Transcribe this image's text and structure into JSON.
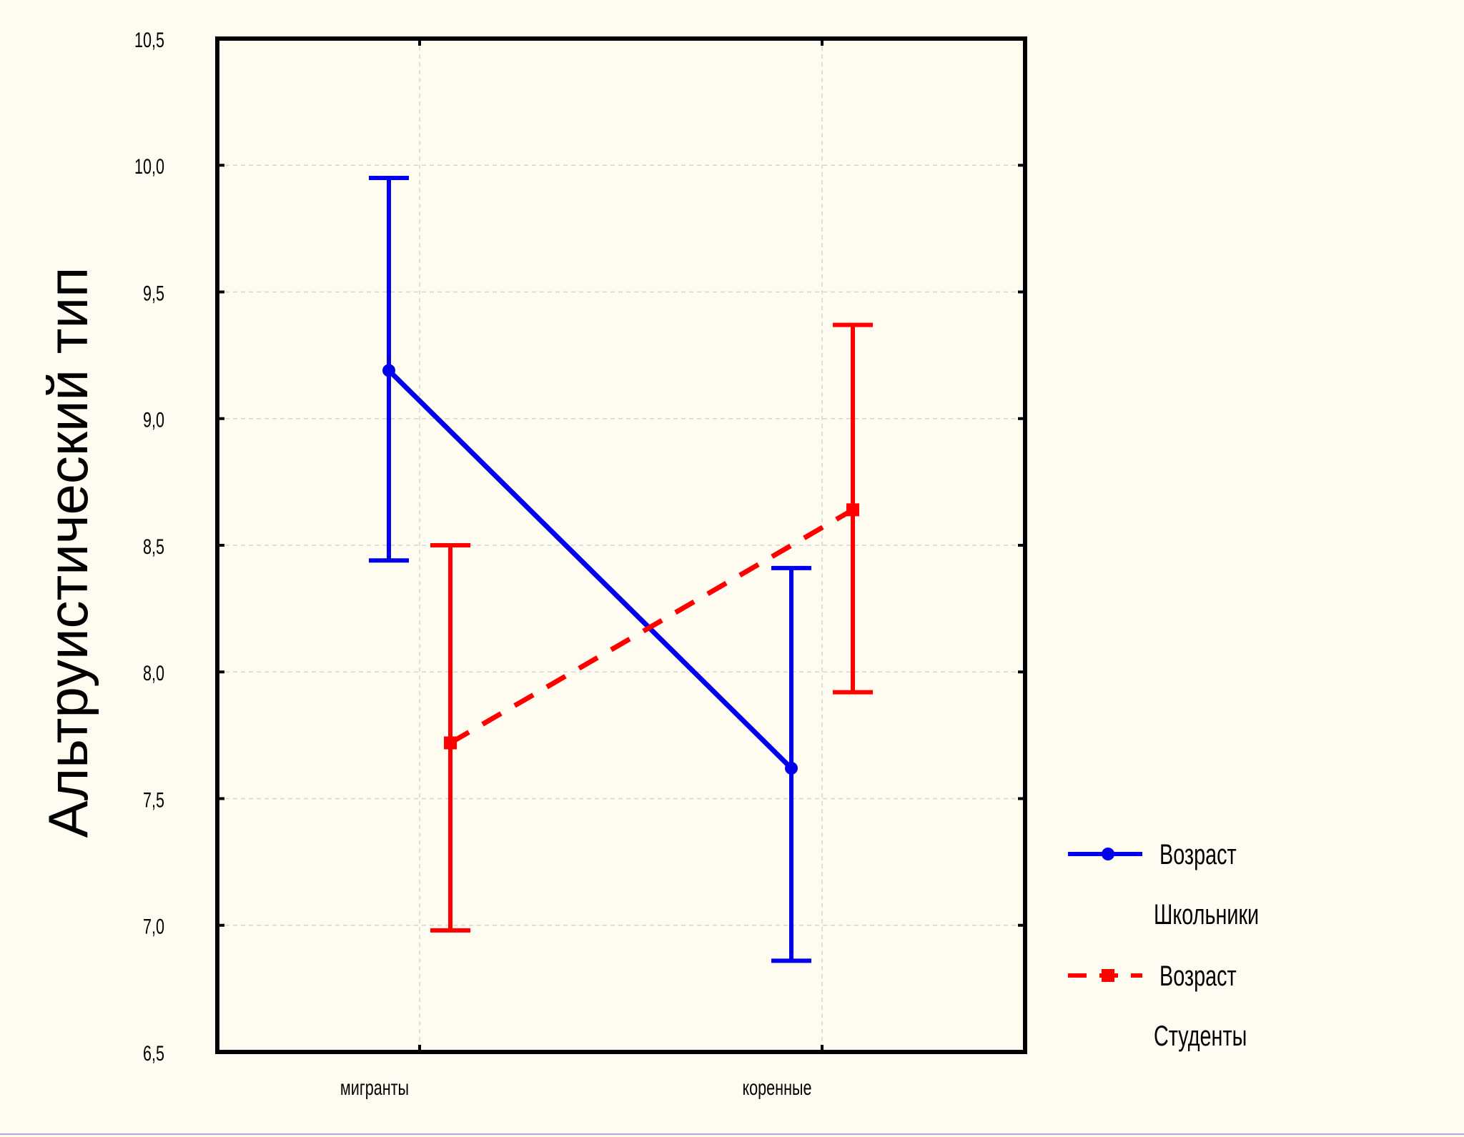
{
  "chart_data": {
    "type": "line",
    "ylabel": "Альтруистический тип",
    "xlabel": "",
    "ylim": [
      6.5,
      10.5
    ],
    "yticks": [
      6.5,
      7.0,
      7.5,
      8.0,
      8.5,
      9.0,
      9.5,
      10.0,
      10.5
    ],
    "ytick_labels": [
      "6,5",
      "7,0",
      "7,5",
      "8,0",
      "8,5",
      "9,0",
      "9,5",
      "10,0",
      "10,5"
    ],
    "categories": [
      "мигранты",
      "коренные"
    ],
    "grid": true,
    "legend_placement": "right",
    "series": [
      {
        "name": "Школьники",
        "legend_title": "Возраст",
        "color": "#0000ee",
        "line_style": "solid",
        "marker": "circle",
        "values": [
          9.19,
          7.62
        ],
        "ci_lower": [
          8.44,
          6.86
        ],
        "ci_upper": [
          9.95,
          8.41
        ]
      },
      {
        "name": "Студенты",
        "legend_title": "Возраст",
        "color": "#ff0000",
        "line_style": "dashed",
        "marker": "square",
        "values": [
          7.72,
          8.64
        ],
        "ci_lower": [
          6.98,
          7.92
        ],
        "ci_upper": [
          8.5,
          9.37
        ]
      }
    ]
  }
}
